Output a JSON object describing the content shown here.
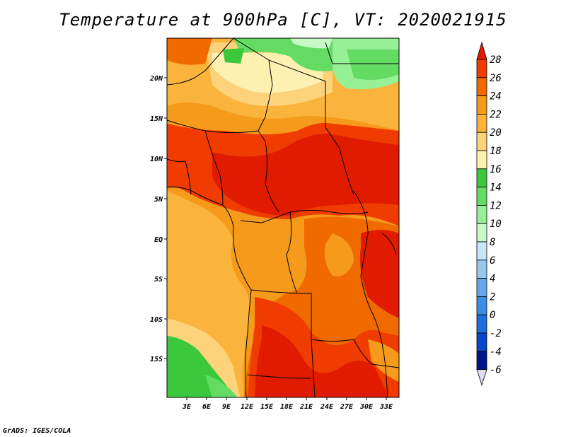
{
  "title": "Temperature at 900hPa [C], VT: 2020021915",
  "credit": "GrADS: IGES/COLA",
  "map": {
    "lat_ticks": [
      "20N",
      "15N",
      "10N",
      "5N",
      "EQ",
      "5S",
      "10S",
      "15S"
    ],
    "lon_ticks": [
      "3E",
      "6E",
      "9E",
      "12E",
      "15E",
      "18E",
      "21E",
      "24E",
      "27E",
      "30E",
      "33E"
    ]
  },
  "colorbar": {
    "levels": [
      "28",
      "26",
      "24",
      "22",
      "20",
      "18",
      "16",
      "14",
      "12",
      "10",
      "8",
      "6",
      "4",
      "2",
      "0",
      "-2",
      "-4",
      "-6"
    ],
    "colors": [
      "#e01b00",
      "#f03c00",
      "#f06a00",
      "#f59a1a",
      "#fab43c",
      "#fcd27a",
      "#fdf0b0",
      "#3cc83c",
      "#64dc64",
      "#96f096",
      "#c8fac8",
      "#c8e6fa",
      "#96c8f0",
      "#64a8ea",
      "#3c8ce6",
      "#1e6edc",
      "#0a46c8",
      "#00148c",
      "#dcdcf0"
    ]
  }
}
